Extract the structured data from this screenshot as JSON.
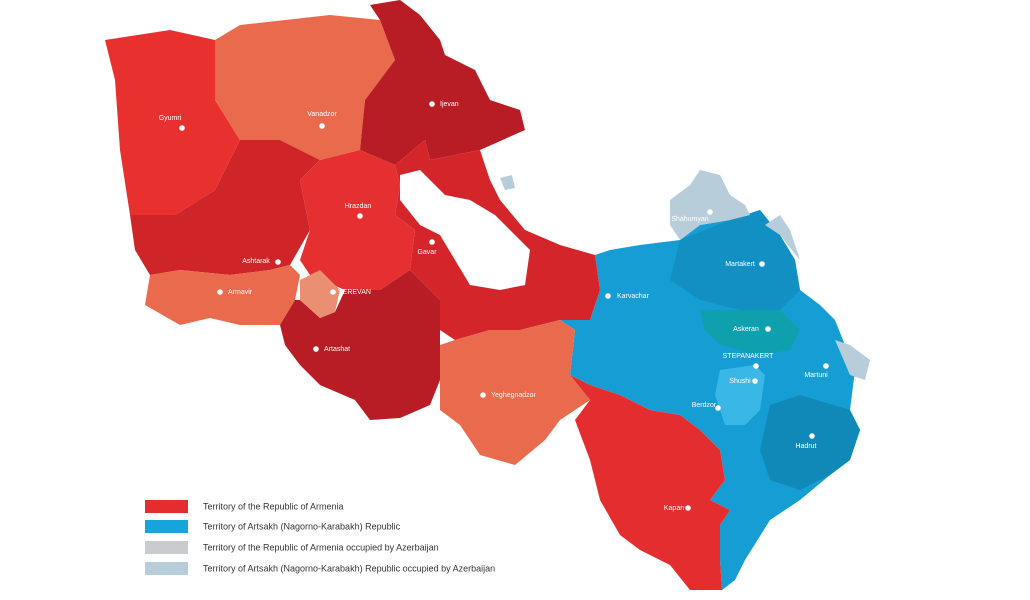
{
  "cities": [
    {
      "label": "Gyumri"
    },
    {
      "label": "Vanadzor"
    },
    {
      "label": "Ijevan"
    },
    {
      "label": "Shahumyan"
    },
    {
      "label": "Hrazdan"
    },
    {
      "label": "Martakert"
    },
    {
      "label": "Gavar"
    },
    {
      "label": "Ashtarak"
    },
    {
      "label": "Karvachar"
    },
    {
      "label": "Armavir"
    },
    {
      "label": "YEREVAN"
    },
    {
      "label": "Askeran"
    },
    {
      "label": "STEPANAKERT"
    },
    {
      "label": "Martuni"
    },
    {
      "label": "Shushi"
    },
    {
      "label": "Artashat"
    },
    {
      "label": "Berdzor"
    },
    {
      "label": "Yeghegnadzor"
    },
    {
      "label": "Hadrut"
    },
    {
      "label": "Kapan"
    }
  ],
  "legend": [
    {
      "label": "Territory of the Republic of Armenia"
    },
    {
      "label": "Territory of Artsakh (Nagorno-Karabakh) Republic"
    },
    {
      "label": "Territory of the Republic of Armenia occupied by Azerbaijan"
    },
    {
      "label": "Territory of Artsakh (Nagorno-Karabakh) Republic occupied by Azerbaijan"
    }
  ]
}
